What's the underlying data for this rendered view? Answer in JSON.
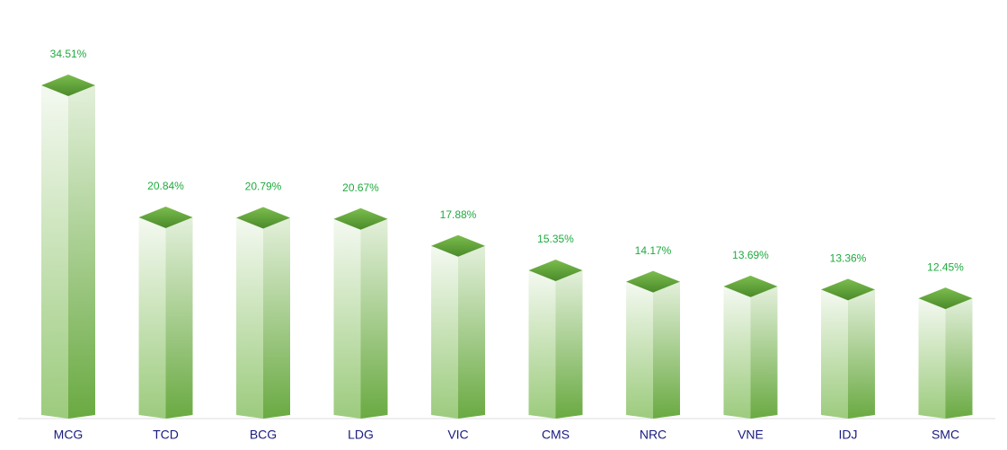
{
  "chart_data": {
    "type": "bar",
    "categories": [
      "MCG",
      "TCD",
      "BCG",
      "LDG",
      "VIC",
      "CMS",
      "NRC",
      "VNE",
      "IDJ",
      "SMC"
    ],
    "values": [
      34.51,
      20.84,
      20.79,
      20.67,
      17.88,
      15.35,
      14.17,
      13.69,
      13.36,
      12.45
    ],
    "value_labels": [
      "34.51%",
      "20.84%",
      "20.79%",
      "20.67%",
      "17.88%",
      "15.35%",
      "14.17%",
      "13.69%",
      "13.36%",
      "12.45%"
    ],
    "color": "#6aab3e"
  }
}
